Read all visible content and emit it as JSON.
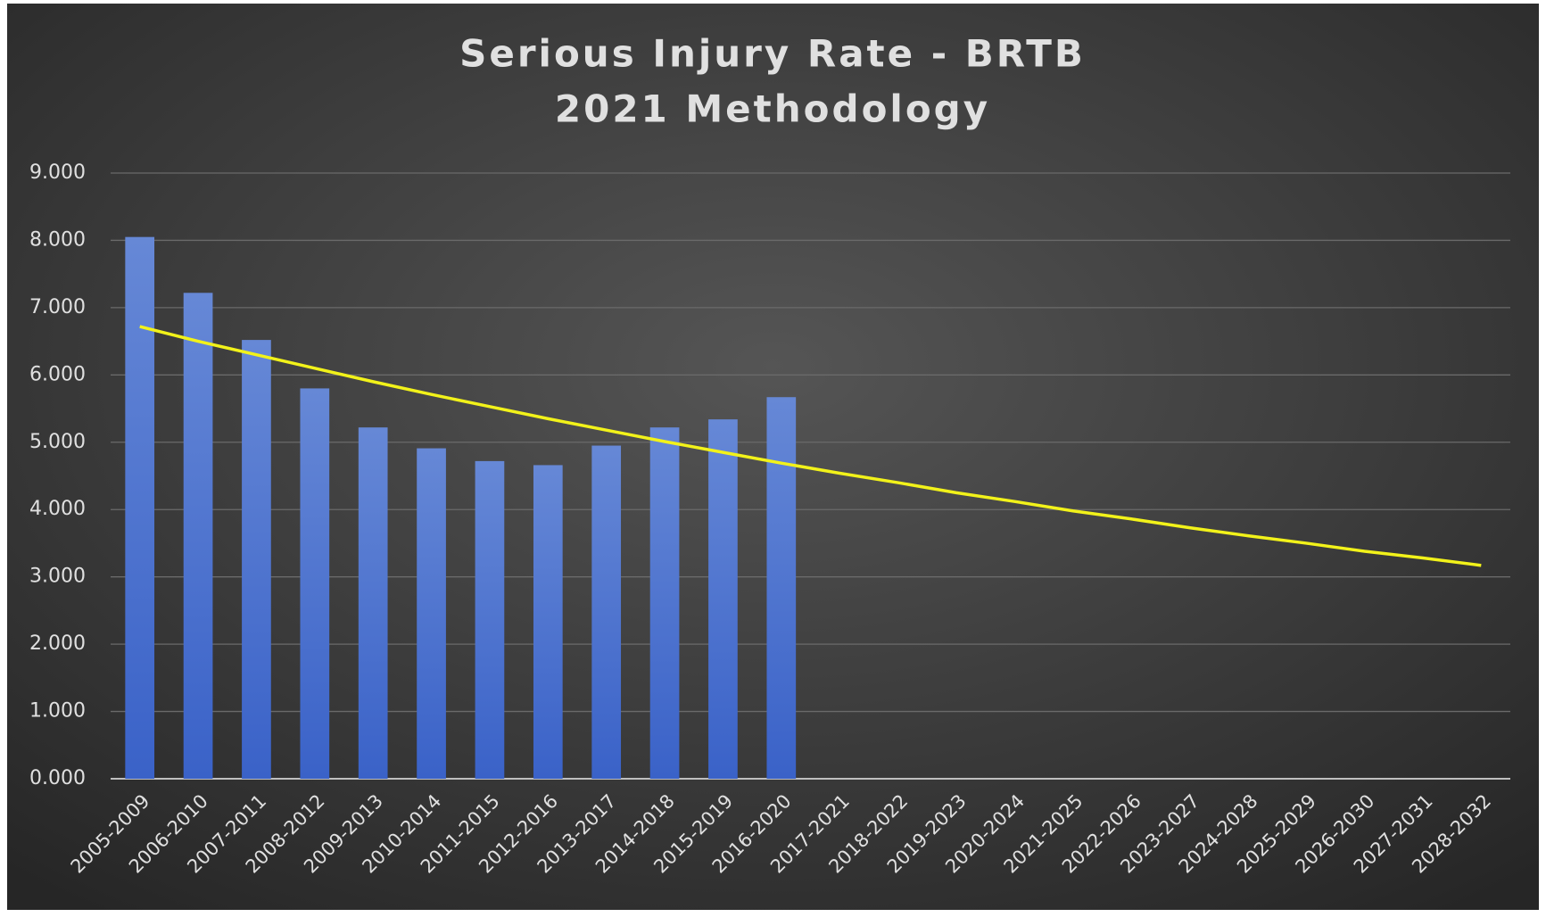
{
  "chart_data": {
    "type": "bar",
    "title": [
      "Serious Injury Rate - BRTB",
      "2021 Methodology"
    ],
    "categories": [
      "2005-2009",
      "2006-2010",
      "2007-2011",
      "2008-2012",
      "2009-2013",
      "2010-2014",
      "2011-2015",
      "2012-2016",
      "2013-2017",
      "2014-2018",
      "2015-2019",
      "2016-2020",
      "2017-2021",
      "2018-2022",
      "2019-2023",
      "2020-2024",
      "2021-2025",
      "2022-2026",
      "2023-2027",
      "2024-2028",
      "2025-2029",
      "2026-2030",
      "2027-2031",
      "2028-2032"
    ],
    "series": [
      {
        "type": "bar",
        "color": "#4a72d0",
        "values": [
          8.05,
          7.22,
          6.52,
          5.8,
          5.22,
          4.91,
          4.72,
          4.66,
          4.95,
          5.22,
          5.34,
          5.67,
          null,
          null,
          null,
          null,
          null,
          null,
          null,
          null,
          null,
          null,
          null,
          null
        ]
      },
      {
        "type": "line",
        "color": "#f2f21a",
        "values": [
          6.72,
          6.5,
          6.3,
          6.1,
          5.9,
          5.71,
          5.53,
          5.35,
          5.18,
          5.01,
          4.85,
          4.69,
          4.54,
          4.4,
          4.25,
          4.12,
          3.98,
          3.86,
          3.73,
          3.61,
          3.5,
          3.38,
          3.28,
          3.17
        ]
      }
    ],
    "ylim": [
      0,
      9
    ],
    "yticks": [
      {
        "value": 0,
        "label": "0.000"
      },
      {
        "value": 1,
        "label": "1.000"
      },
      {
        "value": 2,
        "label": "2.000"
      },
      {
        "value": 3,
        "label": "3.000"
      },
      {
        "value": 4,
        "label": "4.000"
      },
      {
        "value": 5,
        "label": "5.000"
      },
      {
        "value": 6,
        "label": "6.000"
      },
      {
        "value": 7,
        "label": "7.000"
      },
      {
        "value": 8,
        "label": "8.000"
      },
      {
        "value": 9,
        "label": "9.000"
      }
    ],
    "grid": true
  }
}
